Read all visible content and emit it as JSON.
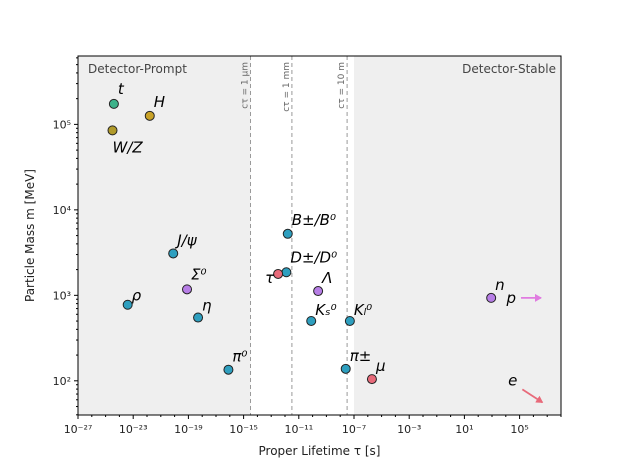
{
  "chart_data": {
    "type": "scatter",
    "xscale": "log",
    "yscale": "log",
    "xlabel": "Proper Lifetime τ [s]",
    "ylabel": "Particle Mass m [MeV]",
    "xlim_exp": [
      -27,
      8
    ],
    "ylim_exp": [
      1.6,
      5.8
    ],
    "x_ticks": [
      {
        "exp": -27,
        "label": "10⁻²⁷"
      },
      {
        "exp": -23,
        "label": "10⁻²³"
      },
      {
        "exp": -19,
        "label": "10⁻¹⁹"
      },
      {
        "exp": -15,
        "label": "10⁻¹⁵"
      },
      {
        "exp": -11,
        "label": "10⁻¹¹"
      },
      {
        "exp": -7,
        "label": "10⁻⁷"
      },
      {
        "exp": -3,
        "label": "10⁻³"
      },
      {
        "exp": 1,
        "label": "10¹"
      },
      {
        "exp": 5,
        "label": "10⁵"
      }
    ],
    "y_ticks": [
      {
        "exp": 2,
        "label": "10²"
      },
      {
        "exp": 3,
        "label": "10³"
      },
      {
        "exp": 4,
        "label": "10⁴"
      },
      {
        "exp": 5,
        "label": "10⁵"
      }
    ],
    "regions": [
      {
        "label": "Detector-Prompt",
        "from_exp": -27,
        "to_exp": -14.5,
        "align": "left"
      },
      {
        "label": "Detector-Stable",
        "from_exp": -7.0,
        "to_exp": 8,
        "align": "right"
      }
    ],
    "reference_lines": [
      {
        "label": "cτ = 1 μm",
        "exp": -14.5
      },
      {
        "label": "cτ = 1 mm",
        "exp": -11.5
      },
      {
        "exp": -7.5,
        "label": "cτ = 10 m"
      }
    ],
    "points": [
      {
        "label": "t",
        "tau_exp": -24.4,
        "mass_exp": 5.24,
        "color": "#3db28a",
        "label_dx": 4,
        "label_dy": -10,
        "anchor": "start"
      },
      {
        "label": "H",
        "tau_exp": -21.8,
        "mass_exp": 5.1,
        "color": "#c9a227",
        "label_dx": 4,
        "label_dy": -9,
        "anchor": "start"
      },
      {
        "label": "W/Z",
        "tau_exp": -24.5,
        "mass_exp": 4.93,
        "color": "#b09a2a",
        "label_dx": 0,
        "label_dy": 22,
        "anchor": "start"
      },
      {
        "label": "J/ψ",
        "tau_exp": -20.1,
        "mass_exp": 3.49,
        "color": "#2e9fbf",
        "label_dx": 4,
        "label_dy": -8,
        "anchor": "start"
      },
      {
        "label": "B±/B⁰",
        "tau_exp": -11.8,
        "mass_exp": 3.72,
        "color": "#2e9fbf",
        "label_dx": 4,
        "label_dy": -9,
        "anchor": "start"
      },
      {
        "label": "D±/D⁰",
        "tau_exp": -11.9,
        "mass_exp": 3.27,
        "color": "#2e9fbf",
        "label_dx": 4,
        "label_dy": -10,
        "anchor": "start"
      },
      {
        "label": "τ",
        "tau_exp": -12.5,
        "mass_exp": 3.25,
        "color": "#e86a7a",
        "label_dx": -4,
        "label_dy": 9,
        "anchor": "end"
      },
      {
        "label": "Σ⁰",
        "tau_exp": -19.1,
        "mass_exp": 3.07,
        "color": "#b77ee6",
        "label_dx": 4,
        "label_dy": -10,
        "anchor": "start"
      },
      {
        "label": "Λ",
        "tau_exp": -9.6,
        "mass_exp": 3.05,
        "color": "#b77ee6",
        "label_dx": 4,
        "label_dy": -8,
        "anchor": "start"
      },
      {
        "label": "ρ",
        "tau_exp": -23.4,
        "mass_exp": 2.89,
        "color": "#2e9fbf",
        "label_dx": 4,
        "label_dy": -4,
        "anchor": "start"
      },
      {
        "label": "η",
        "tau_exp": -18.3,
        "mass_exp": 2.74,
        "color": "#2e9fbf",
        "label_dx": 4,
        "label_dy": -7,
        "anchor": "start"
      },
      {
        "label": "Kₛ⁰",
        "tau_exp": -10.1,
        "mass_exp": 2.7,
        "color": "#2e9fbf",
        "label_dx": 4,
        "label_dy": -6,
        "anchor": "start"
      },
      {
        "label": "Kₗ⁰",
        "tau_exp": -7.3,
        "mass_exp": 2.7,
        "color": "#2e9fbf",
        "label_dx": 4,
        "label_dy": -6,
        "anchor": "start"
      },
      {
        "label": "π⁰",
        "tau_exp": -16.1,
        "mass_exp": 2.13,
        "color": "#2e9fbf",
        "label_dx": 4,
        "label_dy": -8,
        "anchor": "start"
      },
      {
        "label": "π±",
        "tau_exp": -7.6,
        "mass_exp": 2.14,
        "color": "#2e9fbf",
        "label_dx": 4,
        "label_dy": -8,
        "anchor": "start"
      },
      {
        "label": "μ",
        "tau_exp": -5.7,
        "mass_exp": 2.02,
        "color": "#e86a7a",
        "label_dx": 4,
        "label_dy": -8,
        "anchor": "start"
      },
      {
        "label": "n",
        "tau_exp": 2.94,
        "mass_exp": 2.97,
        "color": "#b77ee6",
        "label_dx": 4,
        "label_dy": -8,
        "anchor": "start"
      }
    ],
    "offscale": [
      {
        "label": "p",
        "tau_exp": 5.1,
        "mass_exp": 2.97,
        "color": "#e07be0",
        "direction": "right"
      },
      {
        "label": "e",
        "tau_exp": 5.2,
        "mass_exp": 1.9,
        "color": "#e86a7a",
        "direction": "down-right"
      }
    ]
  }
}
